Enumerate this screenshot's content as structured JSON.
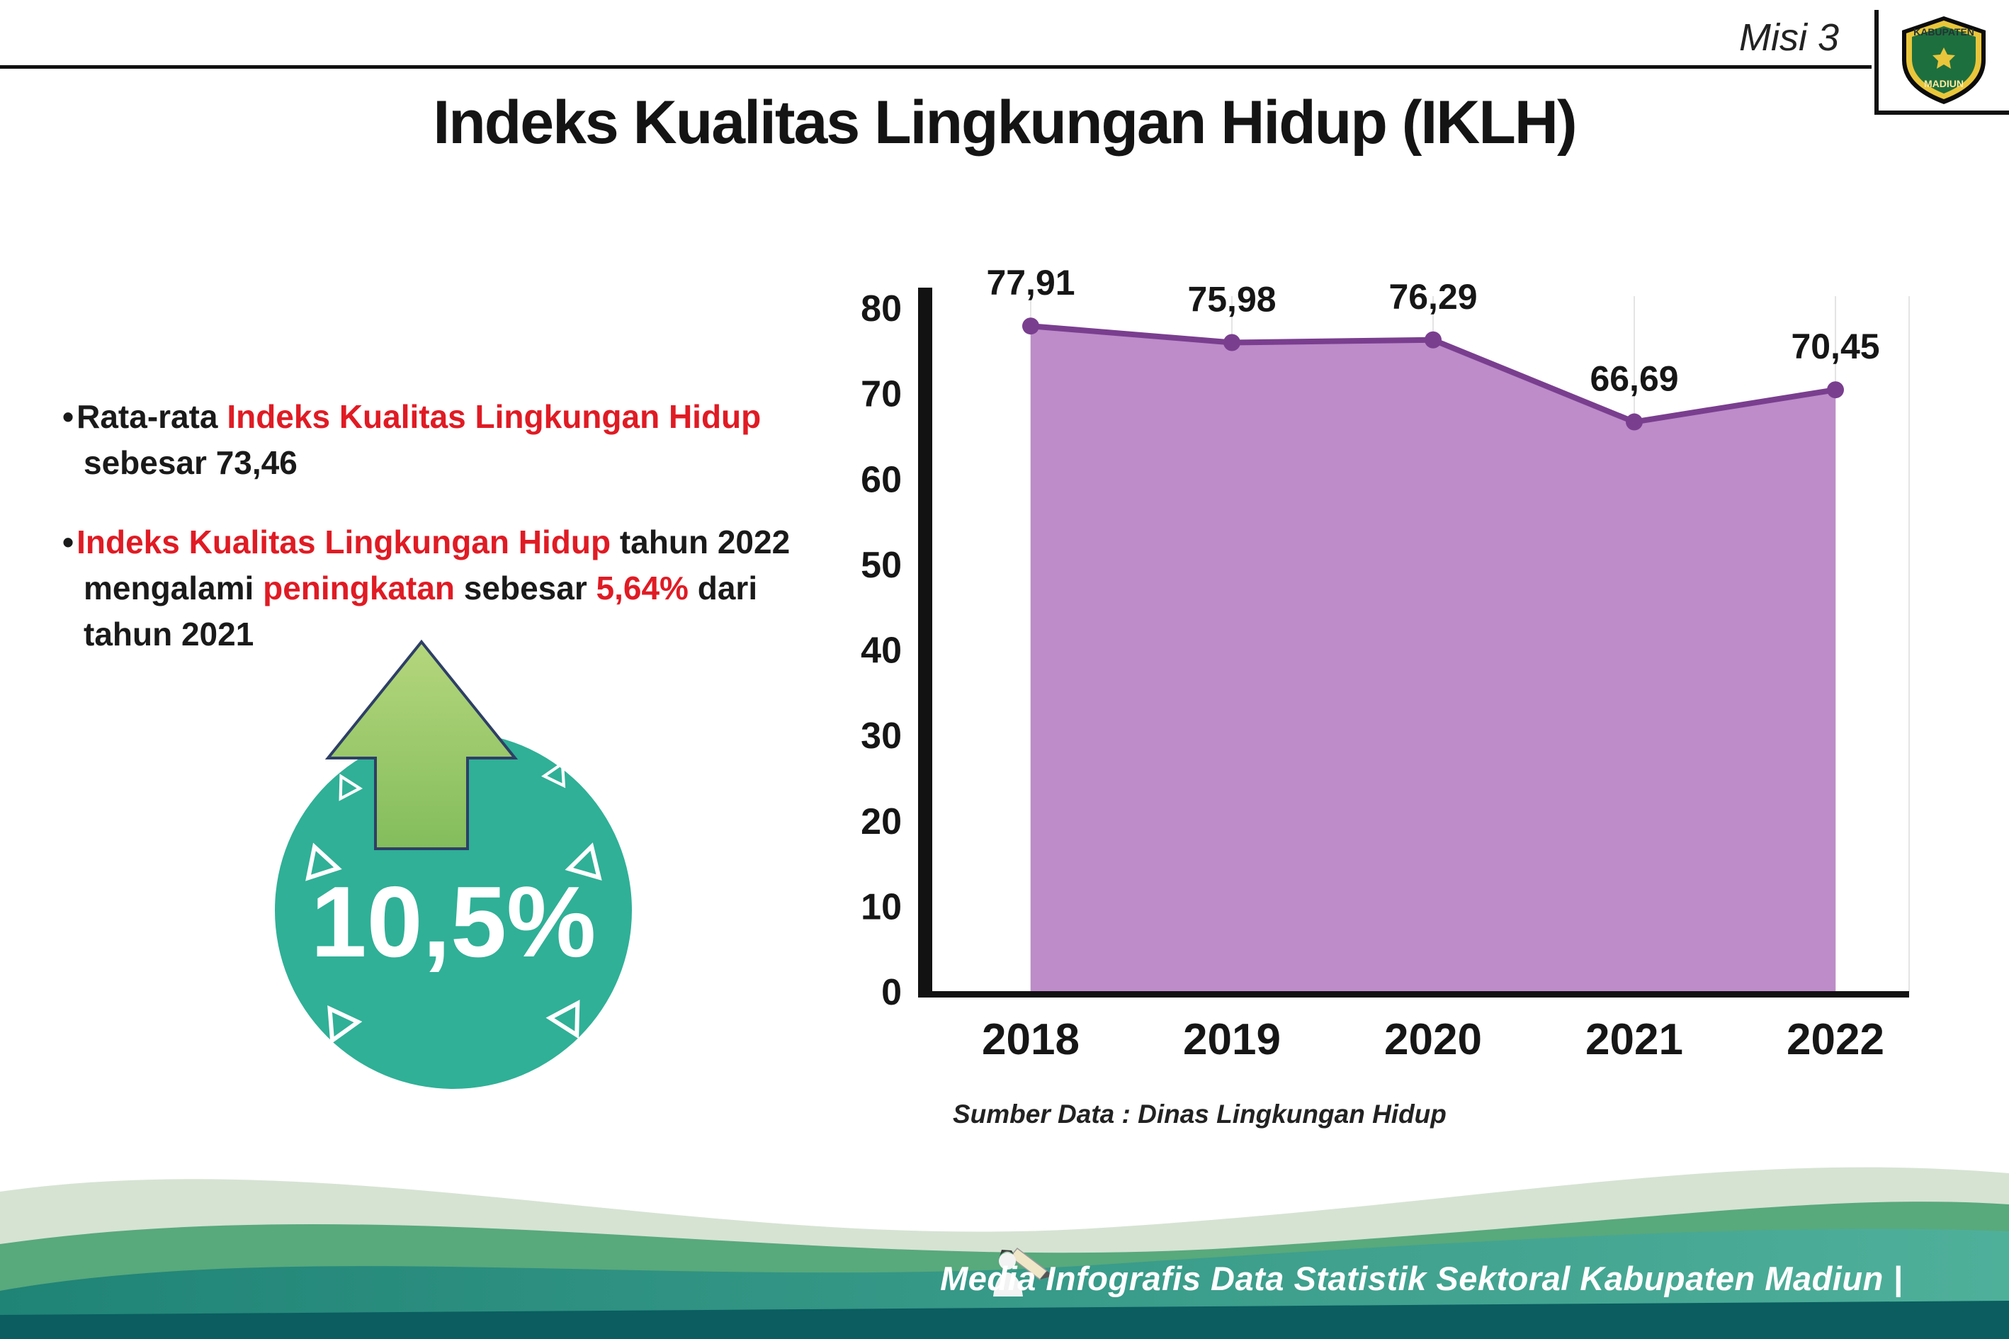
{
  "header": {
    "misi_label": "Misi 3",
    "title": "Indeks Kualitas Lingkungan Hidup (IKLH)",
    "logo_top": "KABUPATEN",
    "logo_bottom": "MADIUN"
  },
  "bullets": {
    "b1_seg1": "Rata-rata ",
    "b1_seg2": "Indeks Kualitas Lingkungan Hidup",
    "b1_seg3": " sebesar 73,46",
    "b2_seg1": "Indeks Kualitas Lingkungan Hidup",
    "b2_seg2": " tahun 2022 mengalami ",
    "b2_seg3": "peningkatan",
    "b2_seg4": " sebesar ",
    "b2_seg5": "5,64%",
    "b2_seg6": " dari tahun 2021"
  },
  "badge": {
    "value": "10,5%",
    "circle_color": "#2fb097",
    "arrow_color_top": "#b5d67c",
    "arrow_color_bottom": "#83bd5c"
  },
  "chart_data": {
    "type": "area",
    "title": "",
    "xlabel": "",
    "ylabel": "",
    "categories": [
      "2018",
      "2019",
      "2020",
      "2021",
      "2022"
    ],
    "values": [
      77.91,
      75.98,
      76.29,
      66.69,
      70.45
    ],
    "value_labels": [
      "77,91",
      "75,98",
      "76,29",
      "66,69",
      "70,45"
    ],
    "ylim": [
      0,
      80
    ],
    "yticks": [
      0,
      10,
      20,
      30,
      40,
      50,
      60,
      70,
      80
    ],
    "grid": "faint-vertical",
    "legend": "none",
    "colors": {
      "area": "#bd8cc9",
      "line": "#7a3e8f"
    },
    "source_note": "Sumber Data : Dinas Lingkungan Hidup"
  },
  "footer": {
    "credit": "Media Infografis Data Statistik Sektoral Kabupaten Madiun |"
  }
}
